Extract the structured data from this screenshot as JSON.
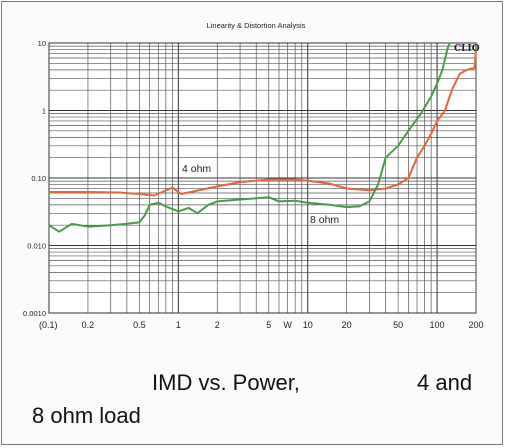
{
  "chart_data": {
    "type": "line",
    "title": "Linearity & Distortion Analysis",
    "watermark": "CLIO",
    "xlabel": "",
    "ylabel": "",
    "x_scale": "log",
    "y_scale": "log",
    "xlim": [
      0.1,
      200
    ],
    "ylim": [
      0.001,
      10
    ],
    "x_tick_labels": [
      {
        "value": 0.1,
        "label": "(0.1)"
      },
      {
        "value": 0.2,
        "label": "0.2"
      },
      {
        "value": 0.5,
        "label": "0.5"
      },
      {
        "value": 1,
        "label": "1"
      },
      {
        "value": 2,
        "label": "2"
      },
      {
        "value": 5,
        "label": "5"
      },
      {
        "value": 7,
        "label": "W"
      },
      {
        "value": 10,
        "label": "10"
      },
      {
        "value": 20,
        "label": "20"
      },
      {
        "value": 50,
        "label": "50"
      },
      {
        "value": 100,
        "label": "100"
      },
      {
        "value": 200,
        "label": "200"
      }
    ],
    "y_tick_labels": [
      {
        "value": 10,
        "label": "10"
      },
      {
        "value": 1,
        "label": "1"
      },
      {
        "value": 0.1,
        "label": "0.10"
      },
      {
        "value": 0.01,
        "label": "0.010"
      },
      {
        "value": 0.001,
        "label": "0.0010"
      }
    ],
    "grid": true,
    "series": [
      {
        "name": "4 ohm",
        "color": "#e8653a",
        "points": [
          [
            0.1,
            0.062
          ],
          [
            0.2,
            0.062
          ],
          [
            0.35,
            0.061
          ],
          [
            0.5,
            0.058
          ],
          [
            0.65,
            0.055
          ],
          [
            0.75,
            0.062
          ],
          [
            0.9,
            0.072
          ],
          [
            1.05,
            0.058
          ],
          [
            1.3,
            0.063
          ],
          [
            2,
            0.075
          ],
          [
            3,
            0.087
          ],
          [
            5,
            0.095
          ],
          [
            8,
            0.095
          ],
          [
            10,
            0.091
          ],
          [
            15,
            0.082
          ],
          [
            20,
            0.07
          ],
          [
            30,
            0.066
          ],
          [
            40,
            0.07
          ],
          [
            50,
            0.08
          ],
          [
            60,
            0.1
          ],
          [
            70,
            0.2
          ],
          [
            80,
            0.3
          ],
          [
            90,
            0.45
          ],
          [
            100,
            0.7
          ],
          [
            115,
            1.0
          ],
          [
            130,
            2.0
          ],
          [
            150,
            3.5
          ],
          [
            170,
            4.0
          ],
          [
            195,
            4.3
          ],
          [
            200,
            8.0
          ]
        ]
      },
      {
        "name": "8 ohm",
        "color": "#4a9a4a",
        "points": [
          [
            0.1,
            0.02
          ],
          [
            0.12,
            0.016
          ],
          [
            0.15,
            0.021
          ],
          [
            0.2,
            0.019
          ],
          [
            0.3,
            0.02
          ],
          [
            0.4,
            0.021
          ],
          [
            0.5,
            0.022
          ],
          [
            0.55,
            0.028
          ],
          [
            0.6,
            0.04
          ],
          [
            0.7,
            0.043
          ],
          [
            0.8,
            0.038
          ],
          [
            1.0,
            0.032
          ],
          [
            1.2,
            0.036
          ],
          [
            1.4,
            0.03
          ],
          [
            1.7,
            0.04
          ],
          [
            2,
            0.045
          ],
          [
            3,
            0.048
          ],
          [
            4,
            0.05
          ],
          [
            5,
            0.052
          ],
          [
            6,
            0.045
          ],
          [
            8,
            0.046
          ],
          [
            10,
            0.043
          ],
          [
            15,
            0.04
          ],
          [
            20,
            0.037
          ],
          [
            25,
            0.038
          ],
          [
            30,
            0.045
          ],
          [
            35,
            0.08
          ],
          [
            40,
            0.2
          ],
          [
            50,
            0.3
          ],
          [
            60,
            0.5
          ],
          [
            75,
            0.9
          ],
          [
            90,
            1.6
          ],
          [
            100,
            2.5
          ],
          [
            110,
            4.0
          ],
          [
            120,
            8.0
          ],
          [
            125,
            10.0
          ]
        ]
      }
    ],
    "annotations": [
      {
        "text": "4 ohm",
        "series": "4 ohm"
      },
      {
        "text": "8 ohm",
        "series": "8 ohm"
      }
    ]
  },
  "caption": {
    "part1": "IMD vs. Power,",
    "part2": "4 and",
    "part3": "8 ohm load"
  }
}
